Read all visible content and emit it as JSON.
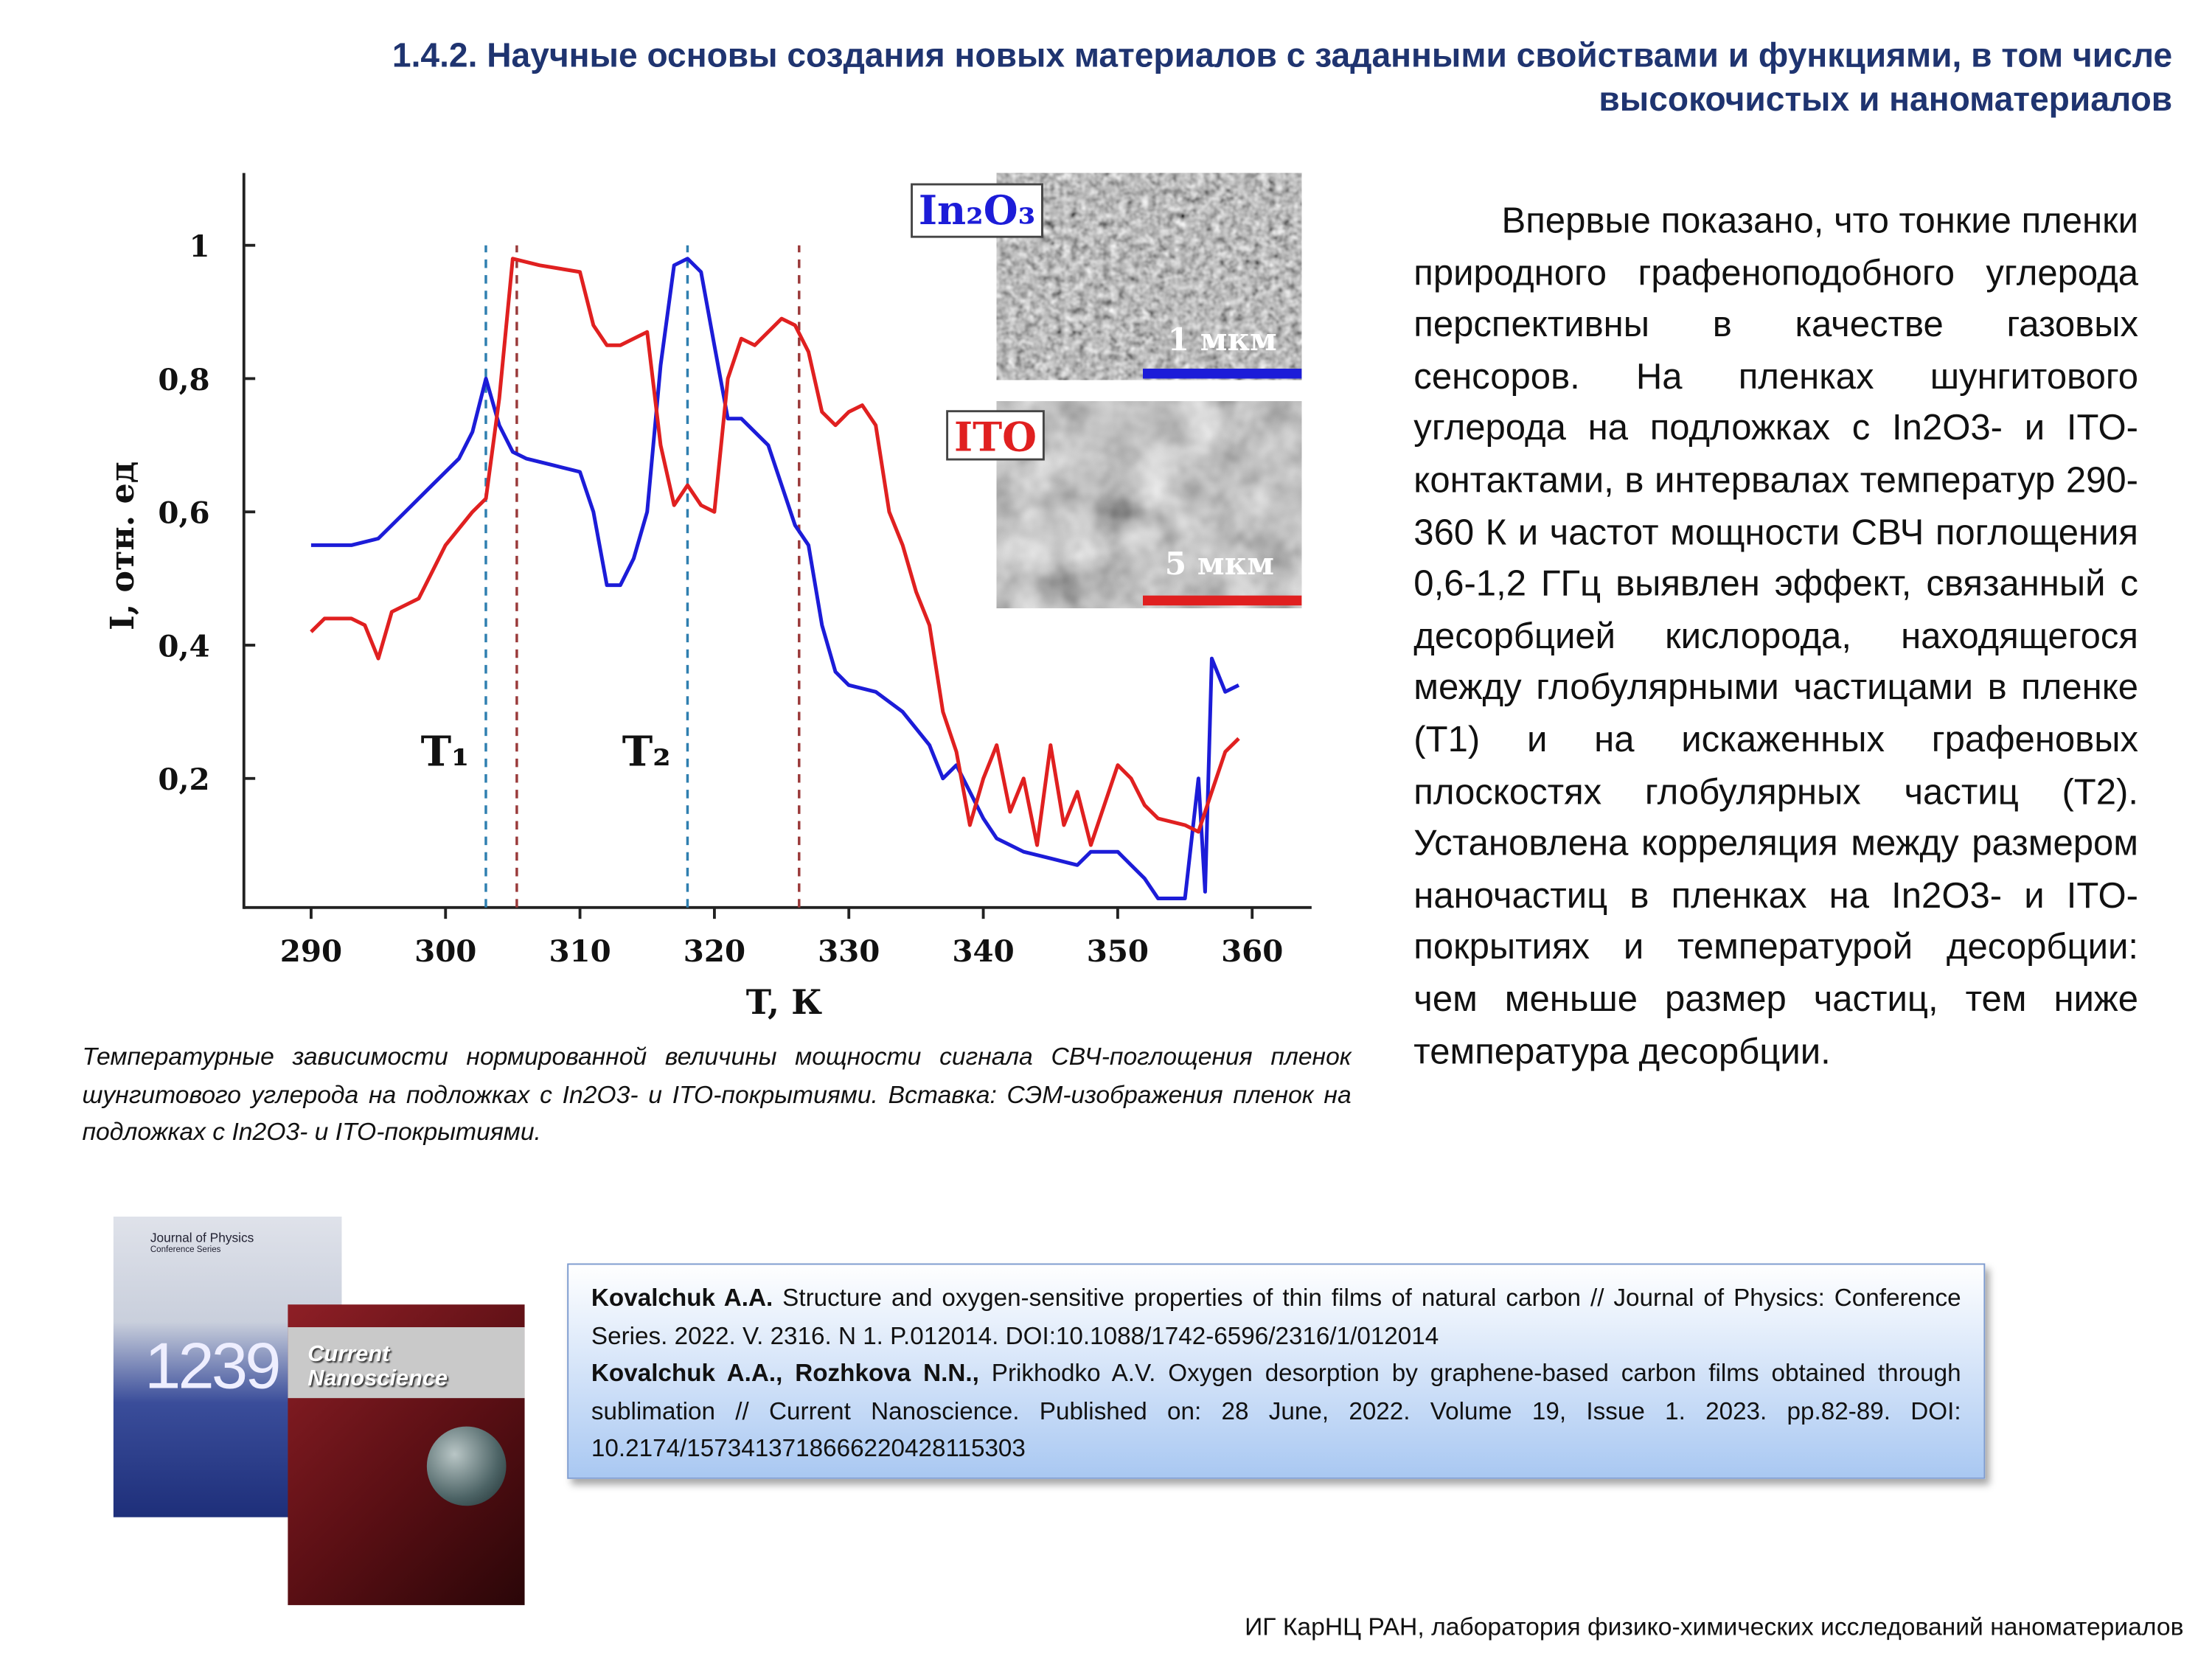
{
  "header": {
    "title": "1.4.2. Научные основы создания новых материалов с заданными свойствами и функциями, в том числе высокочистых и наноматериалов"
  },
  "chart_data": {
    "type": "line",
    "xlabel": "T, К",
    "ylabel": "I, отн. ед",
    "xlim": [
      285,
      364
    ],
    "ylim": [
      0,
      1.1
    ],
    "xticks": [
      290,
      300,
      310,
      320,
      330,
      340,
      350,
      360
    ],
    "yticks": [
      {
        "value": 0.2,
        "label": "0,2"
      },
      {
        "value": 0.4,
        "label": "0,4"
      },
      {
        "value": 0.6,
        "label": "0,6"
      },
      {
        "value": 0.8,
        "label": "0,8"
      },
      1
    ],
    "series": [
      {
        "name": "In₂O₃",
        "color": "#1c1cd8",
        "x": [
          290,
          293,
          295,
          297,
          299,
          301,
          302,
          303,
          304,
          305,
          306,
          308,
          310,
          311,
          312,
          313,
          314,
          315,
          316,
          317,
          318,
          319,
          320,
          321,
          322,
          324,
          326,
          327,
          328,
          329,
          330,
          332,
          334,
          336,
          337,
          338,
          339,
          340,
          341,
          343,
          345,
          347,
          348,
          350,
          351,
          352,
          353,
          355,
          356,
          356.5,
          357,
          358,
          359
        ],
        "values": [
          0.55,
          0.55,
          0.56,
          0.6,
          0.64,
          0.68,
          0.72,
          0.8,
          0.73,
          0.69,
          0.68,
          0.67,
          0.66,
          0.6,
          0.49,
          0.49,
          0.53,
          0.6,
          0.82,
          0.97,
          0.98,
          0.96,
          0.85,
          0.74,
          0.74,
          0.7,
          0.58,
          0.55,
          0.43,
          0.36,
          0.34,
          0.33,
          0.3,
          0.25,
          0.2,
          0.22,
          0.18,
          0.14,
          0.11,
          0.09,
          0.08,
          0.07,
          0.09,
          0.09,
          0.07,
          0.05,
          0.02,
          0.02,
          0.2,
          0.03,
          0.38,
          0.33,
          0.34
        ]
      },
      {
        "name": "ITO",
        "color": "#e02020",
        "x": [
          290,
          291,
          293,
          294,
          295,
          296,
          298,
          300,
          302,
          303,
          304,
          305,
          307,
          310,
          311,
          312,
          313,
          315,
          316,
          317,
          318,
          319,
          320,
          321,
          322,
          323,
          325,
          326,
          327,
          328,
          329,
          330,
          331,
          332,
          333,
          334,
          335,
          336,
          337,
          338,
          339,
          340,
          341,
          342,
          343,
          344,
          345,
          346,
          347,
          348,
          350,
          351,
          352,
          353,
          355,
          356,
          357,
          358,
          359
        ],
        "values": [
          0.42,
          0.44,
          0.44,
          0.43,
          0.38,
          0.45,
          0.47,
          0.55,
          0.6,
          0.62,
          0.77,
          0.98,
          0.97,
          0.96,
          0.88,
          0.85,
          0.85,
          0.87,
          0.7,
          0.61,
          0.64,
          0.61,
          0.6,
          0.8,
          0.86,
          0.85,
          0.89,
          0.88,
          0.84,
          0.75,
          0.73,
          0.75,
          0.76,
          0.73,
          0.6,
          0.55,
          0.48,
          0.43,
          0.3,
          0.24,
          0.13,
          0.2,
          0.25,
          0.15,
          0.2,
          0.1,
          0.25,
          0.13,
          0.18,
          0.1,
          0.22,
          0.2,
          0.16,
          0.14,
          0.13,
          0.12,
          0.18,
          0.24,
          0.26
        ]
      }
    ],
    "vlines": [
      {
        "x": 303,
        "color": "#2f7fb0"
      },
      {
        "x": 305.3,
        "color": "#9a3a3a"
      },
      {
        "x": 318,
        "color": "#2f7fb0"
      },
      {
        "x": 326.3,
        "color": "#9a3a3a"
      }
    ],
    "annotations": [
      "T₁",
      "T₂"
    ],
    "inset": {
      "scale_bars": [
        "1 мкм",
        "5 мкм"
      ]
    }
  },
  "text": "Впервые показано, что тонкие пленки природного графеноподобного углерода перспективны в качестве газовых сенсоров. На пленках шунгитового углерода на подложках с In2O3- и ITO- контактами, в интервалах температур 290-360 К и частот мощности СВЧ поглощения 0,6-1,2 ГГц выявлен эффект, связанный с десорбцией кислорода, находящегося между глобулярными частицами в пленке (Т1) и на искаженных графеновых плоскостях глобулярных частиц (Т2). Установлена корреляция между размером наночастиц в пленках на In2O3- и ITO-покрытиях и температурой десорбции: чем меньше размер частиц, тем ниже температура десорбции.",
  "caption": "Температурные зависимости нормированной величины мощности сигнала СВЧ-поглощения пленок шунгитового углерода на подложках с In2O3- и ITO-покрытиями. Вставка: СЭМ-изображения пленок на подложках с In2O3- и ITO-покрытиями.",
  "references": [
    {
      "authors": "Kovalchuk A.A.",
      "text": "Structure and oxygen-sensitive properties of thin films of natural carbon // Journal of Physics: Conference Series. 2022. V. 2316. N 1. P.012014. DOI:10.1088/1742-6596/2316/1/012014"
    },
    {
      "authors": "Kovalchuk A.A., Rozhkova N.N.,",
      "text": "Prikhodko A.V. Oxygen desorption by graphene-based carbon films obtained through sublimation // Current Nanoscience. Published on: 28 June, 2022. Volume 19, Issue 1. 2023. pp.82-89. DOI: 10.2174/1573413718666220428115303"
    }
  ],
  "covers": [
    {
      "lines": [
        "Journal of Physics",
        "Conference Series",
        "1239"
      ]
    },
    {
      "lines": [
        "Current",
        "Nanoscience"
      ]
    }
  ],
  "footer": "ИГ КарНЦ РАН, лаборатория физико-химических исследований наноматериалов"
}
